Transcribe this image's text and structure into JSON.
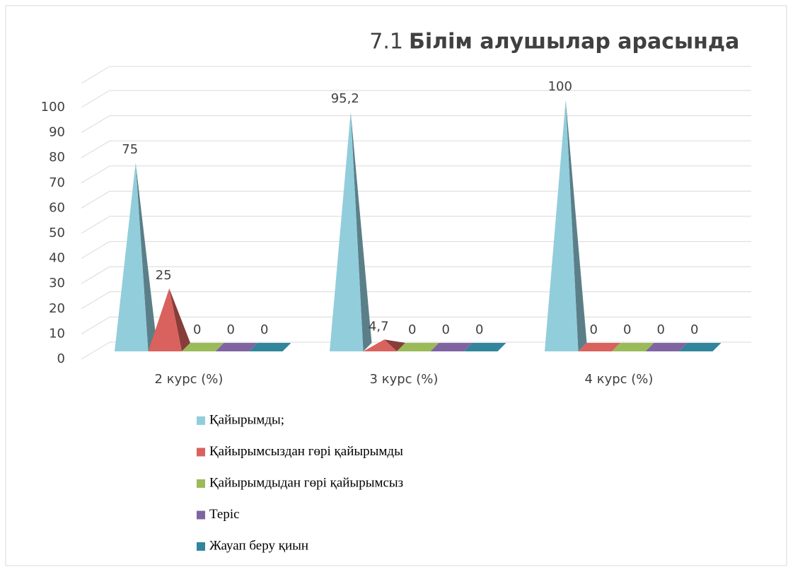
{
  "chart_data": {
    "type": "pyramid3d",
    "title_number": "7.1",
    "title": "Білім алушылар арасында",
    "categories": [
      "2 курс (%)",
      "3 курс (%)",
      "4 курс (%)"
    ],
    "series": [
      {
        "name": "Қайырымды;",
        "color": "#92cddc",
        "values": [
          75,
          95.2,
          100
        ],
        "value_labels": [
          "75",
          "95,2",
          "100"
        ]
      },
      {
        "name": "Қайырымсыздан гөрі қайырымды",
        "color": "#d9625e",
        "values": [
          25,
          4.7,
          0
        ],
        "value_labels": [
          "25",
          "4,7",
          "0"
        ]
      },
      {
        "name": "Қайырымдыдан гөрі қайырымсыз",
        "color": "#9bbb59",
        "values": [
          0,
          0,
          0
        ]
      },
      {
        "name": "Теріс",
        "color": "#8064a2",
        "values": [
          0,
          0,
          0
        ]
      },
      {
        "name": "Жауап беру қиын",
        "color": "#31859c",
        "values": [
          0,
          0,
          0
        ]
      }
    ],
    "ylim": [
      0,
      100
    ],
    "yticks": [
      0,
      10,
      20,
      30,
      40,
      50,
      60,
      70,
      80,
      90,
      100
    ],
    "grid": true
  }
}
